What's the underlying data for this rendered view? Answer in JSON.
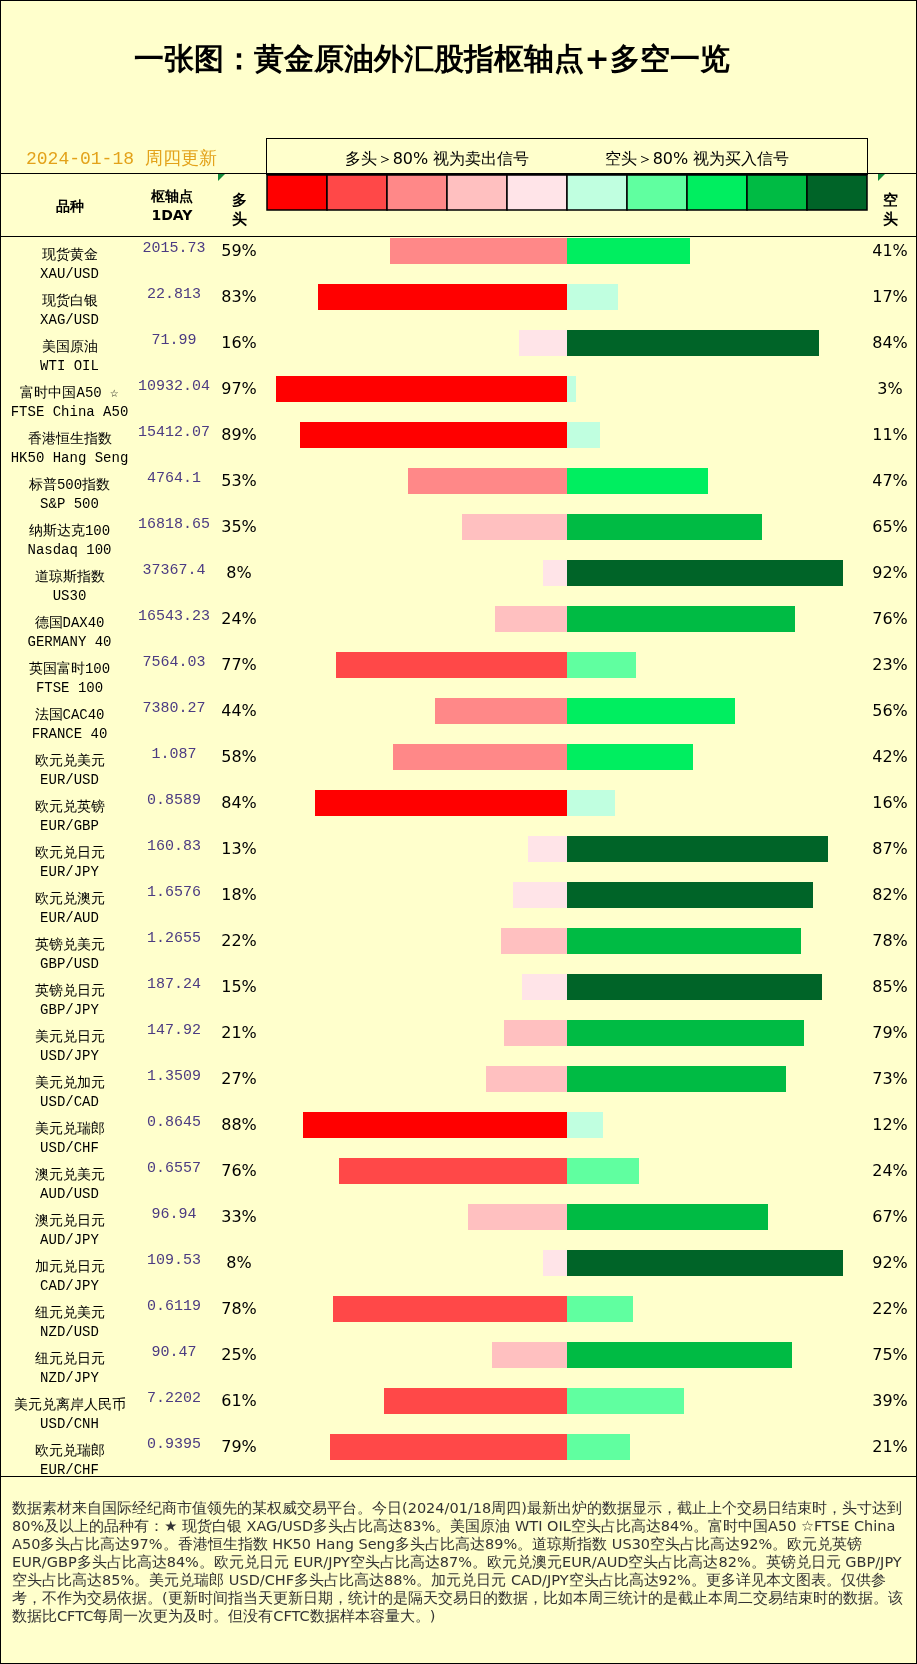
{
  "chart_data": [
    {
      "type": "bar",
      "orientation": "horizontal",
      "title": "一张图：黄金原油外汇股指枢轴点+多空一览",
      "subtitle": "2024-01-18 周四更新",
      "ylabel": "品种",
      "categories": [
        "现货黄金\nXAU/USD",
        "现货白银\nXAG/USD",
        "美国原油\nWTI OIL",
        "富时中国A50 ☆\nFTSE China A50",
        "香港恒生指数\nHK50 Hang Seng",
        "标普500指数\nS&P 500",
        "纳斯达克100\nNasdaq 100",
        "道琼斯指数\nUS30",
        "德国DAX40\nGERMANY 40",
        "英国富时100\nFTSE 100",
        "法国CAC40\nFRANCE 40",
        "欧元兑美元\nEUR/USD",
        "欧元兑英镑\nEUR/GBP",
        "欧元兑日元\nEUR/JPY",
        "欧元兑澳元\nEUR/AUD",
        "英镑兑美元\nGBP/USD",
        "英镑兑日元\nGBP/JPY",
        "美元兑日元\nUSD/JPY",
        "美元兑加元\nUSD/CAD",
        "美元兑瑞郎\nUSD/CHF",
        "澳元兑美元\nAUD/USD",
        "澳元兑日元\nAUD/JPY",
        "加元兑日元\nCAD/JPY",
        "纽元兑美元\nNZD/USD",
        "纽元兑日元\nNZD/JPY",
        "美元兑离岸人民币\nUSD/CNH",
        "欧元兑瑞郎\nEUR/CHF"
      ],
      "series": [
        {
          "name": "多头",
          "values": [
            59,
            83,
            16,
            97,
            89,
            53,
            35,
            8,
            24,
            77,
            44,
            58,
            84,
            13,
            18,
            22,
            15,
            21,
            27,
            88,
            76,
            33,
            8,
            78,
            25,
            61,
            79
          ],
          "colors": [
            "#ff8888",
            "#ff0000",
            "#ffe4e8",
            "#ff0000",
            "#ff0000",
            "#ff8888",
            "#ffc0c0",
            "#ffe4e8",
            "#ffc0c0",
            "#ff4848",
            "#ff8888",
            "#ff8888",
            "#ff0000",
            "#ffe4e8",
            "#ffe4e8",
            "#ffc0c0",
            "#ffe4e8",
            "#ffc0c0",
            "#ffc0c0",
            "#ff0000",
            "#ff4848",
            "#ffc0c0",
            "#ffe4e8",
            "#ff4848",
            "#ffc0c0",
            "#ff4848",
            "#ff4848"
          ],
          "value_labels": [
            "59%",
            "83%",
            "16%",
            "97%",
            "89%",
            "53%",
            "35%",
            "8%",
            "24%",
            "77%",
            "44%",
            "58%",
            "84%",
            "13%",
            "18%",
            "22%",
            "15%",
            "21%",
            "27%",
            "88%",
            "76%",
            "33%",
            "8%",
            "78%",
            "25%",
            "61%",
            "79%"
          ]
        }
      ],
      "tick_labels": "y",
      "annotations": [
        "枢轴点\n1DAY",
        "2015.73",
        "22.813",
        "71.99",
        "10932.04",
        "15412.07",
        "4764.1",
        "16818.65",
        "37367.4",
        "16543.23",
        "7564.03",
        "7380.27",
        "1.087",
        "0.8589",
        "160.83",
        "1.6576",
        "1.2655",
        "187.24",
        "147.92",
        "1.3509",
        "0.8645",
        "0.6557",
        "96.94",
        "109.53",
        "0.6119",
        "90.47",
        "7.2202",
        "0.9395",
        "多头＞80% 视为卖出信号",
        "数据素材来自国际经纪商市值领先的某权威交易平台。今日(2024/01/18周四)最新出炉的数据显示，截止上个交易日结束时，头寸达到80%及以上的品种有：★ 现货白银 XAG/USD多头占比高达83%。美国原油 WTI OIL空头占比高达84%。富时中国A50 ☆FTSE China A50多头占比高达97%。香港恒生指数 HK50 Hang Seng多头占比高达89%。道琼斯指数 US30空头占比高达92%。欧元兑英镑 EUR/GBP多头占比高达84%。欧元兑日元 EUR/JPY空头占比高达87%。欧元兑澳元EUR/AUD空头占比高达82%。英镑兑日元 GBP/JPY空头占比高达85%。美元兑瑞郎 USD/CHF多头占比高达88%。加元兑日元 CAD/JPY空头占比高达92%。更多详见本文图表。仅供参考，不作为交易依据。(更新时间指当天更新日期，统计的是隔天交易日的数据，比如本周三统计的是截止本周二交易结束时的数据。该数据比CFTC每周一次更为及时。但没有CFTC数据样本容量大。)"
      ]
    },
    {
      "type": "bar",
      "orientation": "horizontal",
      "categories": [
        null,
        null,
        null,
        null,
        null,
        null,
        null,
        null,
        null,
        null,
        null,
        null,
        null,
        null,
        null,
        null,
        null,
        null,
        null,
        null,
        null,
        null,
        null,
        null,
        null,
        null,
        null
      ],
      "series": [
        {
          "name": "空头",
          "values": [
            41,
            17,
            84,
            3,
            11,
            47,
            65,
            92,
            76,
            23,
            56,
            42,
            16,
            87,
            82,
            78,
            85,
            79,
            73,
            12,
            24,
            67,
            92,
            22,
            75,
            39,
            21
          ],
          "colors": [
            "#00ee60",
            "#c0ffe0",
            "#006428",
            "#c0ffe0",
            "#c0ffe0",
            "#00ee60",
            "#00bb44",
            "#006428",
            "#00bb44",
            "#60ffa0",
            "#00ee60",
            "#00ee60",
            "#c0ffe0",
            "#006428",
            "#006428",
            "#00bb44",
            "#006428",
            "#00bb44",
            "#00bb44",
            "#c0ffe0",
            "#60ffa0",
            "#00bb44",
            "#006428",
            "#60ffa0",
            "#00bb44",
            "#60ffa0",
            "#60ffa0"
          ],
          "value_labels": [
            "41%",
            "17%",
            "84%",
            "3%",
            "11%",
            "47%",
            "65%",
            "92%",
            "76%",
            "23%",
            "56%",
            "42%",
            "16%",
            "87%",
            "82%",
            "78%",
            "85%",
            "79%",
            "73%",
            "12%",
            "24%",
            "67%",
            "92%",
            "22%",
            "75%",
            "39%",
            "21%"
          ]
        }
      ],
      "tick_labels": false,
      "annotations": [
        "空头＞80% 视为买入信号"
      ]
    }
  ]
}
